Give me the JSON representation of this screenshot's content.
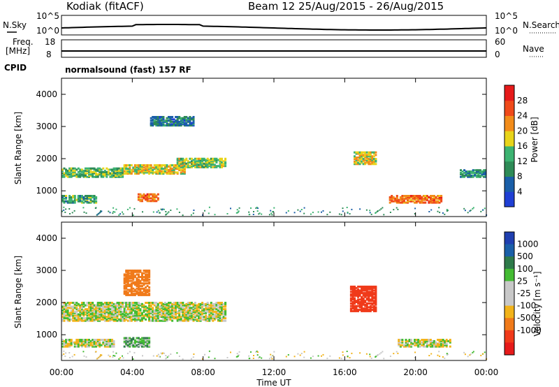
{
  "header": {
    "radar": "Kodiak (fitACF)",
    "beam_and_dates": "Beam 12  25/Aug/2015 - 26/Aug/2015"
  },
  "top_panels": {
    "nsky_label": "N.Sky",
    "nsky_ticks": [
      "10^5",
      "10^0"
    ],
    "nsearch_label": "N.Search",
    "nsearch_ticks": [
      "10^5",
      "10^0"
    ],
    "freq_label_1": "Freq.",
    "freq_label_2": "[MHz]",
    "freq_ticks": [
      "18",
      "8"
    ],
    "nave_label": "Nave",
    "nave_ticks": [
      "60",
      "0"
    ],
    "cpid_label": "CPID",
    "cpid_text": "normalsound (fast) 157 RF"
  },
  "colors": {
    "power": [
      "#1f3fd4",
      "#1a5fa8",
      "#2e8b57",
      "#3cb371",
      "#e8d41a",
      "#f28c1a",
      "#f04a1a",
      "#e61a1a"
    ],
    "velocity": [
      "#1f3fb0",
      "#1a5fa8",
      "#2e7a4a",
      "#44bb33",
      "#c8c8c8",
      "#c8c8c8",
      "#f2b31a",
      "#f07a1a",
      "#f03a1a",
      "#e61a1a"
    ]
  },
  "chart_data": [
    {
      "type": "heatmap",
      "name": "power",
      "ylabel": "Slant Range [km]",
      "y_ticks": [
        "1000",
        "2000",
        "3000",
        "4000"
      ],
      "colorbar_label": "Power [dB]",
      "colorbar_ticks": [
        "4",
        "8",
        "12",
        "16",
        "20",
        "24",
        "28"
      ],
      "ylim": [
        200,
        4500
      ],
      "xlim": [
        "00:00",
        "00:00"
      ],
      "regions": [
        {
          "t0": 0.0,
          "t1": 3.5,
          "r0": 1400,
          "r1": 1700,
          "v": 14
        },
        {
          "t0": 3.5,
          "t1": 7.0,
          "r0": 1500,
          "r1": 1800,
          "v": 18
        },
        {
          "t0": 6.5,
          "t1": 9.3,
          "r0": 1700,
          "r1": 2000,
          "v": 16
        },
        {
          "t0": 5.0,
          "t1": 7.5,
          "r0": 3000,
          "r1": 3300,
          "v": 8
        },
        {
          "t0": 0.0,
          "t1": 2.0,
          "r0": 600,
          "r1": 850,
          "v": 12
        },
        {
          "t0": 4.3,
          "t1": 5.5,
          "r0": 650,
          "r1": 900,
          "v": 24
        },
        {
          "t0": 16.5,
          "t1": 17.8,
          "r0": 1800,
          "r1": 2200,
          "v": 18
        },
        {
          "t0": 18.5,
          "t1": 21.5,
          "r0": 600,
          "r1": 850,
          "v": 24
        },
        {
          "t0": 22.5,
          "t1": 24.0,
          "r0": 1400,
          "r1": 1650,
          "v": 10
        }
      ]
    },
    {
      "type": "heatmap",
      "name": "velocity",
      "ylabel": "Slant Range [km]",
      "y_ticks": [
        "1000",
        "2000",
        "3000",
        "4000"
      ],
      "colorbar_label": "Velocity [m s⁻¹]",
      "colorbar_ticks": [
        "1000",
        "500",
        "100",
        "25",
        "-25",
        "-100",
        "-500",
        "-1000"
      ],
      "ylim": [
        200,
        4500
      ],
      "xlabel": "Time UT",
      "x_ticks": [
        "00:00",
        "04:00",
        "08:00",
        "12:00",
        "16:00",
        "20:00",
        "00:00"
      ],
      "regions": [
        {
          "t0": 0.0,
          "t1": 9.3,
          "r0": 1400,
          "r1": 2000,
          "v": 0
        },
        {
          "t0": 0.0,
          "t1": 3.0,
          "r0": 600,
          "r1": 850,
          "v": 0
        },
        {
          "t0": 3.5,
          "t1": 5.0,
          "r0": 600,
          "r1": 900,
          "v": 80
        },
        {
          "t0": 16.3,
          "t1": 17.8,
          "r0": 1700,
          "r1": 2500,
          "v": -600
        },
        {
          "t0": 19.0,
          "t1": 22.0,
          "r0": 600,
          "r1": 850,
          "v": 0
        },
        {
          "t0": 3.5,
          "t1": 5.0,
          "r0": 2200,
          "r1": 3000,
          "v": -200
        }
      ]
    }
  ]
}
